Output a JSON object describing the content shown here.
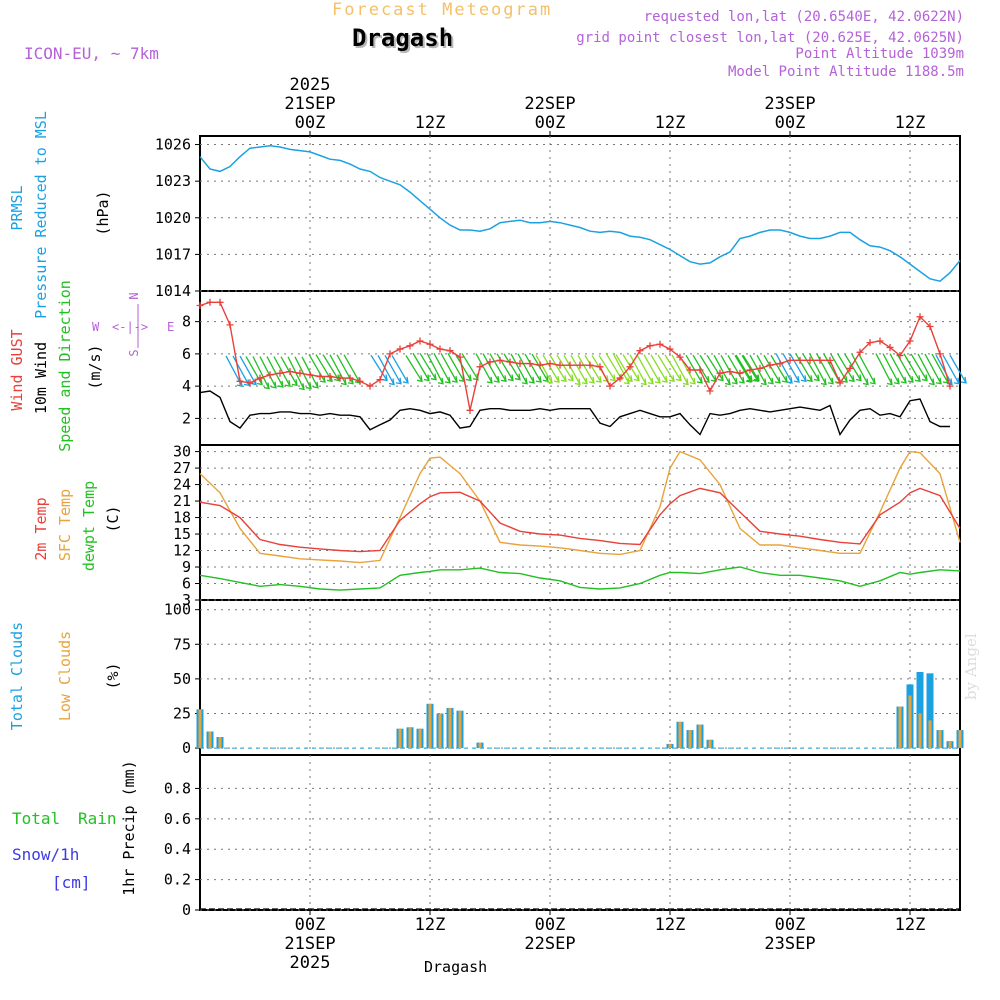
{
  "header": {
    "subtitle": "Forecast Meteogram",
    "location": "Dragash",
    "model": "ICON-EU, ~ 7km",
    "requested": "requested lon,lat (20.6540E, 42.0622N)",
    "gridpoint": "grid point closest lon,lat (20.625E, 42.0625N)",
    "point_alt": "Point Altitude 1039m",
    "model_alt": "Model Point Altitude 1188.5m",
    "credit": "by Angel",
    "bottom_location": "Dragash"
  },
  "time_axis": {
    "top_labels": [
      {
        "hour": 0,
        "lines": [
          "2025",
          "21SEP",
          "00Z"
        ]
      },
      {
        "hour": 12,
        "lines": [
          "12Z"
        ]
      },
      {
        "hour": 24,
        "lines": [
          "22SEP",
          "00Z"
        ]
      },
      {
        "hour": 36,
        "lines": [
          "12Z"
        ]
      },
      {
        "hour": 48,
        "lines": [
          "23SEP",
          "00Z"
        ]
      },
      {
        "hour": 60,
        "lines": [
          "12Z"
        ]
      }
    ],
    "bottom_labels": [
      {
        "hour": 0,
        "lines": [
          "00Z",
          "21SEP",
          "2025"
        ]
      },
      {
        "hour": 12,
        "lines": [
          "12Z"
        ]
      },
      {
        "hour": 24,
        "lines": [
          "00Z",
          "22SEP"
        ]
      },
      {
        "hour": 36,
        "lines": [
          "12Z"
        ]
      },
      {
        "hour": 48,
        "lines": [
          "00Z",
          "23SEP"
        ]
      },
      {
        "hour": 60,
        "lines": [
          "12Z"
        ]
      }
    ],
    "start_hour": -11,
    "end_hour": 65
  },
  "colors": {
    "pressure": "#1ba1e2",
    "gust": "#e8403a",
    "wind": "#000000",
    "temp2m": "#e8403a",
    "sfctemp": "#e8a33a",
    "dewpt": "#22c022",
    "total_cloud": "#1ba1e2",
    "low_cloud": "#e8a33a",
    "rain": "#22c022",
    "snow": "#3a3ae8",
    "compass": "#b561d8",
    "wind_dir_green": "#22c022",
    "wind_dir_lime": "#88dd22",
    "wind_dir_blue": "#1ba1e2"
  },
  "panel_labels": {
    "pressure": {
      "col1": "PRMSL",
      "col2": "Pressure Reduced to MSL",
      "unit": "(hPa)"
    },
    "wind": {
      "gust": "Wind GUST",
      "wind": "10m Wind",
      "dir": "Speed and Direction",
      "unit": "(m/s)",
      "compass": {
        "w": "W",
        "e": "E",
        "n": "N",
        "s": "S",
        "arrow": "<-|->"
      }
    },
    "temp": {
      "t2m": "2m Temp",
      "sfc": "SFC Temp",
      "dew": "dewpt Temp",
      "unit": "(C)"
    },
    "cloud": {
      "total": "Total Clouds",
      "low": "Low Clouds",
      "unit": "(%)"
    },
    "precip": {
      "total": "Total",
      "rain": "Rain",
      "snow": "Snow/1h",
      "snow_unit": "[cm]",
      "axis": "1hr Precip (mm)"
    }
  },
  "chart_data": [
    {
      "type": "line",
      "panel": "pressure",
      "ylabel": "Pressure Reduced to MSL (hPa)",
      "ylim": [
        1014,
        1026
      ],
      "yticks": [
        1014,
        1017,
        1020,
        1023,
        1026
      ],
      "x_hours": [
        -11,
        -10,
        -9,
        -8,
        -7,
        -6,
        -5,
        -4,
        -3,
        -2,
        -1,
        0,
        1,
        2,
        3,
        4,
        5,
        6,
        7,
        8,
        9,
        10,
        11,
        12,
        13,
        14,
        15,
        16,
        17,
        18,
        19,
        20,
        21,
        22,
        23,
        24,
        25,
        26,
        27,
        28,
        29,
        30,
        31,
        32,
        33,
        34,
        35,
        36,
        37,
        38,
        39,
        40,
        41,
        42,
        43,
        44,
        45,
        46,
        47,
        48,
        49,
        50,
        51,
        52,
        53,
        54,
        55,
        56,
        57,
        58,
        59,
        60,
        61,
        62,
        63,
        64,
        65
      ],
      "values": [
        1025.0,
        1024.0,
        1023.8,
        1024.2,
        1025.0,
        1025.7,
        1025.8,
        1025.9,
        1025.8,
        1025.6,
        1025.5,
        1025.4,
        1025.1,
        1024.8,
        1024.7,
        1024.4,
        1024.0,
        1023.8,
        1023.3,
        1023.0,
        1022.7,
        1022.1,
        1021.4,
        1020.7,
        1020.0,
        1019.4,
        1019.0,
        1019.0,
        1018.9,
        1019.1,
        1019.6,
        1019.7,
        1019.8,
        1019.6,
        1019.6,
        1019.7,
        1019.6,
        1019.4,
        1019.2,
        1018.9,
        1018.8,
        1018.9,
        1018.8,
        1018.5,
        1018.4,
        1018.2,
        1017.8,
        1017.4,
        1016.9,
        1016.4,
        1016.2,
        1016.3,
        1016.8,
        1017.2,
        1018.3,
        1018.5,
        1018.8,
        1019.0,
        1019.0,
        1018.8,
        1018.5,
        1018.3,
        1018.3,
        1018.5,
        1018.8,
        1018.8,
        1018.2,
        1017.7,
        1017.6,
        1017.3,
        1016.8,
        1016.2,
        1015.6,
        1015.0,
        1014.8,
        1015.5,
        1016.5
      ]
    },
    {
      "type": "line",
      "panel": "wind",
      "ylabel": "Speed (m/s)",
      "ylim": [
        0,
        9.5
      ],
      "yticks": [
        2,
        4,
        6,
        8
      ],
      "x_hours": [
        -11,
        -10,
        -9,
        -8,
        -7,
        -6,
        -5,
        -4,
        -3,
        -2,
        -1,
        0,
        1,
        2,
        3,
        4,
        5,
        6,
        7,
        8,
        9,
        10,
        11,
        12,
        13,
        14,
        15,
        16,
        17,
        18,
        19,
        20,
        21,
        22,
        23,
        24,
        25,
        26,
        27,
        28,
        29,
        30,
        31,
        32,
        33,
        34,
        35,
        36,
        37,
        38,
        39,
        40,
        41,
        42,
        43,
        44,
        45,
        46,
        47,
        48,
        49,
        50,
        51,
        52,
        53,
        54,
        55,
        56,
        57,
        58,
        59,
        60,
        61,
        62,
        63,
        64,
        65
      ],
      "series": [
        {
          "name": "Wind GUST",
          "values": [
            9.0,
            9.2,
            9.2,
            7.8,
            4.3,
            4.2,
            4.5,
            4.7,
            4.8,
            4.9,
            4.8,
            4.7,
            4.6,
            4.6,
            4.5,
            4.5,
            4.3,
            4.0,
            4.4,
            6.0,
            6.3,
            6.5,
            6.8,
            6.6,
            6.3,
            6.2,
            5.8,
            2.5,
            5.2,
            5.5,
            5.6,
            5.5,
            5.4,
            5.4,
            5.3,
            5.4,
            5.3,
            5.3,
            5.3,
            5.3,
            5.2,
            4.0,
            4.5,
            5.2,
            6.2,
            6.5,
            6.6,
            6.3,
            5.8,
            5.0,
            5.0,
            3.7,
            4.8,
            4.9,
            4.8,
            5.0,
            5.1,
            5.3,
            5.4,
            5.6,
            5.6,
            5.6,
            5.6,
            5.6,
            4.2,
            5.1,
            6.1,
            6.7,
            6.8,
            6.4,
            5.9,
            6.8,
            8.3,
            7.7,
            6.0,
            4.0
          ]
        },
        {
          "name": "10m Wind",
          "values": [
            3.6,
            3.7,
            3.3,
            1.8,
            1.4,
            2.2,
            2.3,
            2.3,
            2.4,
            2.4,
            2.3,
            2.3,
            2.2,
            2.3,
            2.2,
            2.2,
            2.1,
            1.3,
            1.6,
            1.9,
            2.5,
            2.6,
            2.5,
            2.3,
            2.4,
            2.2,
            1.4,
            1.5,
            2.5,
            2.6,
            2.6,
            2.5,
            2.5,
            2.5,
            2.6,
            2.5,
            2.6,
            2.6,
            2.6,
            2.6,
            1.7,
            1.5,
            2.1,
            2.3,
            2.5,
            2.3,
            2.1,
            2.1,
            2.3,
            1.6,
            1.0,
            2.3,
            2.2,
            2.3,
            2.5,
            2.6,
            2.5,
            2.4,
            2.5,
            2.6,
            2.7,
            2.6,
            2.5,
            2.8,
            1.0,
            1.9,
            2.5,
            2.6,
            2.2,
            2.3,
            2.1,
            3.1,
            3.2,
            1.8,
            1.5,
            1.5
          ]
        }
      ],
      "direction_arrows": "wind barbs drawn between 3.5 and 6 m/s"
    },
    {
      "type": "line",
      "panel": "temperature",
      "ylabel": "(C)",
      "ylim": [
        3,
        31
      ],
      "yticks": [
        3,
        6,
        9,
        12,
        15,
        18,
        21,
        24,
        27,
        30
      ],
      "x_hours": [
        -11,
        -9,
        -7,
        -5,
        -3,
        -1,
        1,
        3,
        5,
        7,
        9,
        11,
        12,
        13,
        15,
        17,
        19,
        21,
        23,
        25,
        27,
        29,
        31,
        33,
        35,
        36,
        37,
        39,
        41,
        43,
        45,
        47,
        49,
        51,
        53,
        55,
        57,
        59,
        60,
        61,
        63,
        65
      ],
      "series": [
        {
          "name": "2m Temp",
          "values": [
            20.8,
            20.2,
            18.0,
            14.0,
            13.1,
            12.6,
            12.3,
            12.0,
            11.8,
            12.0,
            17.5,
            20.5,
            21.8,
            22.5,
            22.6,
            21.0,
            17.0,
            15.5,
            15.0,
            14.8,
            14.2,
            13.8,
            13.3,
            13.1,
            18.5,
            20.5,
            22.0,
            23.3,
            22.5,
            19.0,
            15.5,
            15.0,
            14.6,
            14.0,
            13.5,
            13.2,
            18.5,
            20.8,
            22.5,
            23.3,
            22.0,
            16.0
          ]
        },
        {
          "name": "SFC Temp",
          "values": [
            26.0,
            22.5,
            16.0,
            11.5,
            11.0,
            10.5,
            10.3,
            10.1,
            9.8,
            10.2,
            18.0,
            26.0,
            28.8,
            29.0,
            26.0,
            21.0,
            13.5,
            13.0,
            12.8,
            12.5,
            12.0,
            11.5,
            11.3,
            12.0,
            20.0,
            27.0,
            30.0,
            28.5,
            24.0,
            16.0,
            13.0,
            13.0,
            12.5,
            12.0,
            11.5,
            11.5,
            19.0,
            27.0,
            30.0,
            29.8,
            26.0,
            13.5
          ]
        },
        {
          "name": "dewpt Temp",
          "values": [
            7.5,
            6.9,
            6.2,
            5.5,
            5.8,
            5.5,
            5.0,
            4.8,
            5.0,
            5.2,
            7.5,
            8.0,
            8.2,
            8.5,
            8.5,
            8.8,
            8.0,
            7.8,
            7.0,
            6.5,
            5.3,
            5.0,
            5.2,
            6.0,
            7.5,
            8.0,
            8.0,
            7.8,
            8.5,
            9.0,
            8.0,
            7.5,
            7.5,
            7.0,
            6.5,
            5.5,
            6.5,
            8.0,
            7.7,
            8.0,
            8.5,
            8.3
          ]
        }
      ]
    },
    {
      "type": "bar",
      "panel": "clouds",
      "ylabel": "(%)",
      "ylim": [
        0,
        100
      ],
      "yticks": [
        0,
        25,
        50,
        75,
        100
      ],
      "x_hours": [
        -11,
        -10,
        -9,
        -8,
        -7,
        -6,
        -5,
        -4,
        -3,
        -2,
        -1,
        0,
        1,
        2,
        3,
        4,
        5,
        6,
        7,
        8,
        9,
        10,
        11,
        12,
        13,
        14,
        15,
        16,
        17,
        18,
        19,
        20,
        21,
        22,
        23,
        24,
        25,
        26,
        27,
        28,
        29,
        30,
        31,
        32,
        33,
        34,
        35,
        36,
        37,
        38,
        39,
        40,
        41,
        42,
        43,
        44,
        45,
        46,
        47,
        48,
        49,
        50,
        51,
        52,
        53,
        54,
        55,
        56,
        57,
        58,
        59,
        60,
        61,
        62,
        63,
        64,
        65
      ],
      "series": [
        {
          "name": "Total Clouds",
          "values": [
            28,
            12,
            8,
            0.5,
            0.5,
            0.5,
            0.5,
            0.5,
            0.5,
            0.5,
            0.5,
            0.5,
            0.5,
            0.5,
            0.5,
            0.5,
            0.5,
            0.5,
            0.5,
            0.5,
            14,
            15,
            14,
            32,
            25,
            29,
            27,
            0.5,
            4,
            0.5,
            0.5,
            0.5,
            0.5,
            0.5,
            0.5,
            0.5,
            0.5,
            0.5,
            0.5,
            0.5,
            0.5,
            0.5,
            0.5,
            0.5,
            0.5,
            0.5,
            0.5,
            3,
            19,
            13,
            17,
            6,
            0.5,
            0.5,
            0.5,
            0.5,
            0.5,
            0.5,
            0.5,
            0.5,
            0.5,
            0.5,
            0.5,
            0.5,
            0.5,
            0.5,
            0.5,
            0.5,
            0.5,
            0.5,
            30,
            46,
            55,
            54,
            13,
            5,
            13
          ]
        },
        {
          "name": "Low Clouds",
          "values": [
            28,
            12,
            8,
            0.5,
            0.5,
            0.5,
            0.5,
            0.5,
            0.5,
            0.5,
            0.5,
            0.5,
            0.5,
            0.5,
            0.5,
            0.5,
            0.5,
            0.5,
            0.5,
            0.5,
            14,
            15,
            14,
            32,
            25,
            29,
            27,
            0.5,
            4,
            0.5,
            0.5,
            0.5,
            0.5,
            0.5,
            0.5,
            0.5,
            0.5,
            0.5,
            0.5,
            0.5,
            0.5,
            0.5,
            0.5,
            0.5,
            0.5,
            0.5,
            0.5,
            3,
            19,
            13,
            17,
            6,
            0.5,
            0.5,
            0.5,
            0.5,
            0.5,
            0.5,
            0.5,
            0.5,
            0.5,
            0.5,
            0.5,
            0.5,
            0.5,
            0.5,
            0.5,
            0.5,
            0.5,
            0.5,
            30,
            38,
            25,
            20,
            13,
            5,
            13
          ]
        }
      ]
    },
    {
      "type": "bar",
      "panel": "precip",
      "ylabel": "1hr Precip (mm)",
      "ylim": [
        0,
        1.0
      ],
      "yticks": [
        0,
        0.2,
        0.4,
        0.6,
        0.8
      ],
      "series": [
        {
          "name": "Total Rain",
          "values": []
        },
        {
          "name": "Snow/1h",
          "values": []
        }
      ]
    }
  ]
}
